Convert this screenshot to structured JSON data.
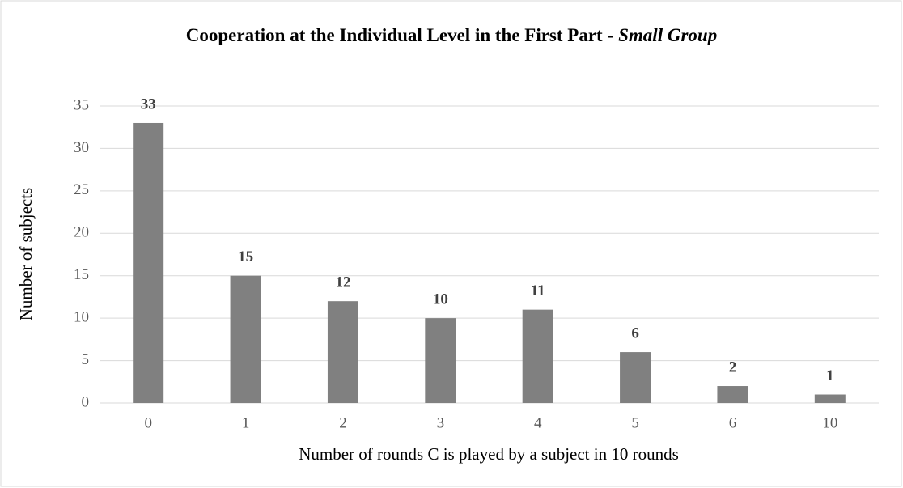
{
  "chart_data": {
    "type": "bar",
    "title": {
      "text": "Cooperation at the Individual Level in the First Part -",
      "emphasis": "Small Group"
    },
    "xlabel": "Number of rounds C is played by a subject in 10 rounds",
    "ylabel": "Number of subjects",
    "categories": [
      "0",
      "1",
      "2",
      "3",
      "4",
      "5",
      "6",
      "10"
    ],
    "values": [
      33,
      15,
      12,
      10,
      11,
      6,
      2,
      1
    ],
    "color": "#808080",
    "ylim": [
      0,
      35
    ],
    "yticks": [
      0,
      5,
      10,
      15,
      20,
      25,
      30,
      35
    ],
    "grid": true
  }
}
